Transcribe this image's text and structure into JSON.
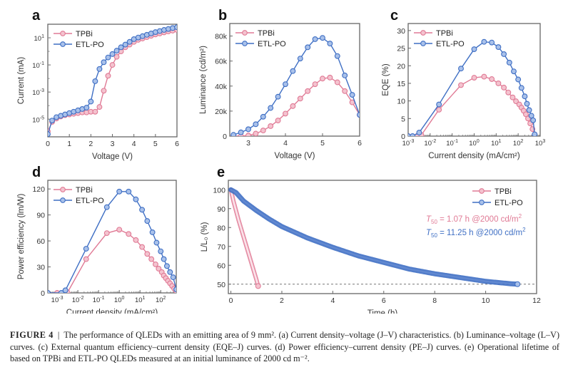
{
  "figure": {
    "caption_label": "FIGURE 4",
    "caption_separator": "|",
    "caption_text": "The performance of QLEDs with an emitting area of 9 mm². (a) Current density–voltage (J–V) characteristics. (b) Luminance–voltage (L–V) curves. (c) External quantum efficiency–current density (EQE–J) curves. (d) Power efficiency–current density (PE–J) curves. (e) Operational lifetime of based on TPBi and ETL-PO QLEDs measured at an initial luminance of 2000 cd m⁻²."
  },
  "colors": {
    "TPBi": "#e07a95",
    "ETL-PO": "#3f6fc4",
    "axis": "#555555"
  },
  "chart_data": [
    {
      "id": "a",
      "panel_label": "a",
      "type": "line",
      "xlabel": "Voltage (V)",
      "ylabel": "Current (mA)",
      "xscale": "linear",
      "yscale": "log",
      "xlim": [
        0,
        6
      ],
      "ylim_log10": [
        -6.3,
        2.0
      ],
      "xticks": [
        "0",
        "1",
        "2",
        "3",
        "4",
        "5",
        "6"
      ],
      "yticks": [
        {
          "exp": "1",
          "v": 1
        },
        {
          "exp": "-1",
          "v": -1
        },
        {
          "exp": "-3",
          "v": -3
        },
        {
          "exp": "-5",
          "v": -5
        }
      ],
      "legend": [
        "TPBi",
        "ETL-PO"
      ],
      "legend_position": "top-left",
      "series": [
        {
          "name": "TPBi",
          "x": [
            0,
            0.2,
            0.4,
            0.6,
            0.8,
            1.0,
            1.2,
            1.4,
            1.6,
            1.8,
            2.0,
            2.2,
            2.4,
            2.6,
            2.8,
            3.0,
            3.2,
            3.4,
            3.6,
            3.8,
            4.0,
            4.2,
            4.4,
            4.6,
            4.8,
            5.0,
            5.2,
            5.4,
            5.6,
            5.8,
            6.0
          ],
          "log10y": [
            -5.9,
            -5.2,
            -4.95,
            -4.8,
            -4.7,
            -4.65,
            -4.6,
            -4.55,
            -4.5,
            -4.5,
            -4.45,
            -4.45,
            -4.1,
            -2.9,
            -1.8,
            -1.0,
            -0.4,
            0.0,
            0.3,
            0.5,
            0.7,
            0.85,
            0.95,
            1.05,
            1.15,
            1.25,
            1.32,
            1.4,
            1.47,
            1.53,
            1.58
          ]
        },
        {
          "name": "ETL-PO",
          "x": [
            0,
            0.2,
            0.4,
            0.6,
            0.8,
            1.0,
            1.2,
            1.4,
            1.6,
            1.8,
            2.0,
            2.2,
            2.4,
            2.6,
            2.8,
            3.0,
            3.2,
            3.4,
            3.6,
            3.8,
            4.0,
            4.2,
            4.4,
            4.6,
            4.8,
            5.0,
            5.2,
            5.4,
            5.6,
            5.8,
            6.0
          ],
          "log10y": [
            -6.1,
            -5.1,
            -4.85,
            -4.75,
            -4.65,
            -4.55,
            -4.45,
            -4.35,
            -4.25,
            -4.15,
            -3.7,
            -2.2,
            -1.3,
            -0.8,
            -0.45,
            -0.2,
            0.05,
            0.3,
            0.5,
            0.7,
            0.9,
            1.02,
            1.12,
            1.22,
            1.32,
            1.42,
            1.5,
            1.58,
            1.65,
            1.72,
            1.78
          ]
        }
      ]
    },
    {
      "id": "b",
      "panel_label": "b",
      "type": "line",
      "xlabel": "Voltage (V)",
      "ylabel": "Luminance (cd/m²)",
      "xscale": "linear",
      "yscale": "linear",
      "xlim": [
        2.5,
        6
      ],
      "ylim": [
        0,
        90000
      ],
      "xticks": [
        {
          "v": 3,
          "label": "3"
        },
        {
          "v": 4,
          "label": "4"
        },
        {
          "v": 5,
          "label": "5"
        },
        {
          "v": 6,
          "label": "6"
        }
      ],
      "yticks": [
        {
          "v": 0,
          "label": "0"
        },
        {
          "v": 20000,
          "label": "20k"
        },
        {
          "v": 40000,
          "label": "40k"
        },
        {
          "v": 60000,
          "label": "60k"
        },
        {
          "v": 80000,
          "label": "80k"
        }
      ],
      "legend": [
        "TPBi",
        "ETL-PO"
      ],
      "legend_position": "top-left",
      "series": [
        {
          "name": "TPBi",
          "x": [
            2.6,
            2.8,
            3.0,
            3.2,
            3.4,
            3.6,
            3.8,
            4.0,
            4.2,
            4.4,
            4.6,
            4.8,
            5.0,
            5.2,
            5.4,
            5.6,
            5.8,
            6.0
          ],
          "y": [
            0,
            0,
            500,
            2000,
            4500,
            8000,
            12500,
            18000,
            24000,
            30000,
            36000,
            41500,
            46000,
            46800,
            43000,
            36000,
            27000,
            17000
          ]
        },
        {
          "name": "ETL-PO",
          "x": [
            2.6,
            2.8,
            3.0,
            3.2,
            3.4,
            3.6,
            3.8,
            4.0,
            4.2,
            4.4,
            4.6,
            4.8,
            5.0,
            5.2,
            5.4,
            5.6,
            5.8,
            6.0
          ],
          "y": [
            1000,
            3000,
            5500,
            9500,
            15500,
            22500,
            31500,
            41500,
            52000,
            62000,
            71000,
            77500,
            78500,
            74000,
            64000,
            48500,
            33000,
            17000
          ]
        }
      ]
    },
    {
      "id": "c",
      "panel_label": "c",
      "type": "line",
      "xlabel": "Current density (mA/cm²)",
      "ylabel": "EQE (%)",
      "xscale": "log",
      "yscale": "linear",
      "xlim_log10": [
        -3,
        3
      ],
      "ylim": [
        0,
        32
      ],
      "xticks": [
        {
          "exp": "-3",
          "v": -3
        },
        {
          "exp": "-2",
          "v": -2
        },
        {
          "exp": "-1",
          "v": -1
        },
        {
          "exp": "0",
          "v": 0
        },
        {
          "exp": "1",
          "v": 1
        },
        {
          "exp": "2",
          "v": 2
        },
        {
          "exp": "3",
          "v": 3
        }
      ],
      "yticks": [
        0,
        5,
        10,
        15,
        20,
        25,
        30
      ],
      "legend": [
        "TPBi",
        "ETL-PO"
      ],
      "legend_position": "top-left",
      "series": [
        {
          "name": "TPBi",
          "log10x": [
            -3.0,
            -2.6,
            -2.4,
            -1.6,
            -0.6,
            0.0,
            0.45,
            0.8,
            1.1,
            1.35,
            1.55,
            1.75,
            1.9,
            2.05,
            2.15,
            2.25,
            2.35,
            2.45,
            2.55,
            2.65,
            2.75
          ],
          "y": [
            0,
            0,
            0.3,
            7.5,
            14.5,
            16.6,
            16.9,
            16.2,
            15.0,
            13.8,
            12.4,
            11.0,
            9.9,
            9.0,
            8.1,
            7.2,
            6.2,
            5.0,
            3.6,
            2.0,
            0.5
          ]
        },
        {
          "name": "ETL-PO",
          "log10x": [
            -3.0,
            -2.8,
            -2.5,
            -1.6,
            -0.6,
            0.0,
            0.45,
            0.8,
            1.1,
            1.35,
            1.6,
            1.8,
            2.0,
            2.15,
            2.3,
            2.4,
            2.5,
            2.6,
            2.68,
            2.75
          ],
          "y": [
            0,
            0,
            1.0,
            9.0,
            19.2,
            24.7,
            26.8,
            26.6,
            25.3,
            23.3,
            20.9,
            18.4,
            16.1,
            13.7,
            11.3,
            9.2,
            7.4,
            5.8,
            4.5,
            0.5
          ]
        }
      ]
    },
    {
      "id": "d",
      "panel_label": "d",
      "type": "line",
      "xlabel": "Current density (mA/cm²)",
      "ylabel": "Power efficiency (lm/W)",
      "xscale": "log",
      "yscale": "linear",
      "xlim_log10": [
        -3.45,
        2.75
      ],
      "ylim": [
        0,
        130
      ],
      "xticks": [
        {
          "exp": "-3",
          "v": -3
        },
        {
          "exp": "-2",
          "v": -2
        },
        {
          "exp": "-1",
          "v": -1
        },
        {
          "exp": "0",
          "v": 0
        },
        {
          "exp": "1",
          "v": 1
        },
        {
          "exp": "2",
          "v": 2
        }
      ],
      "yticks": [
        0,
        30,
        60,
        90,
        120
      ],
      "legend": [
        "TPBi",
        "ETL-PO"
      ],
      "legend_position": "top-left",
      "series": [
        {
          "name": "TPBi",
          "log10x": [
            -3.45,
            -3.0,
            -2.5,
            -1.6,
            -0.6,
            0.0,
            0.45,
            0.8,
            1.1,
            1.35,
            1.55,
            1.75,
            1.9,
            2.05,
            2.15,
            2.25,
            2.35,
            2.45,
            2.55,
            2.65,
            2.75
          ],
          "y": [
            0,
            0,
            0.5,
            39,
            69,
            73,
            68,
            61,
            53,
            45,
            39,
            33,
            28,
            24,
            20,
            17,
            14,
            11,
            8,
            5,
            2
          ]
        },
        {
          "name": "ETL-PO",
          "log10x": [
            -3.45,
            -2.8,
            -2.6,
            -1.6,
            -0.6,
            0.0,
            0.45,
            0.8,
            1.1,
            1.35,
            1.6,
            1.8,
            2.0,
            2.15,
            2.3,
            2.45,
            2.6,
            2.75
          ],
          "y": [
            0,
            0,
            3,
            51,
            99,
            117,
            117,
            108,
            96,
            83,
            70,
            58,
            48,
            39,
            31,
            24,
            18,
            4
          ]
        }
      ]
    },
    {
      "id": "e",
      "panel_label": "e",
      "type": "line",
      "xlabel": "Time (h)",
      "ylabel": "L/L₀ (%)",
      "xscale": "linear",
      "yscale": "linear",
      "xlim": [
        -0.1,
        12
      ],
      "ylim": [
        45,
        105
      ],
      "xticks": [
        0,
        2,
        4,
        6,
        8,
        10,
        12
      ],
      "yticks": [
        50,
        60,
        70,
        80,
        90,
        100
      ],
      "reference_line": {
        "y": 50,
        "style": "dashed"
      },
      "legend": [
        "TPBi",
        "ETL-PO"
      ],
      "legend_position": "top-right",
      "annotations": [
        {
          "series": "TPBi",
          "prefix": "T",
          "sub": "50",
          "text": " = 1.07 h @2000 cd/m",
          "sup": "2"
        },
        {
          "series": "ETL-PO",
          "prefix": "T",
          "sub": "50",
          "text": " = 11.25 h @2000 cd/m",
          "sup": "2"
        }
      ],
      "series": [
        {
          "name": "TPBi",
          "t50_h": 1.07,
          "x": [
            0,
            0.05,
            0.1,
            0.2,
            0.3,
            0.4,
            0.5,
            0.6,
            0.7,
            0.8,
            0.9,
            1.0,
            1.07
          ],
          "y": [
            100,
            97,
            94,
            89,
            84,
            79.5,
            75,
            70.5,
            66,
            61.5,
            57,
            52.5,
            49
          ]
        },
        {
          "name": "ETL-PO",
          "t50_h": 11.25,
          "x": [
            0,
            0.2,
            0.5,
            1,
            1.5,
            2,
            3,
            4,
            5,
            6,
            7,
            8,
            9,
            10,
            11,
            11.25
          ],
          "y": [
            100,
            98.5,
            94,
            89,
            84.5,
            80.5,
            74.5,
            69.5,
            65,
            61.5,
            58,
            55.5,
            53.5,
            51.5,
            50.2,
            50
          ]
        }
      ]
    }
  ]
}
